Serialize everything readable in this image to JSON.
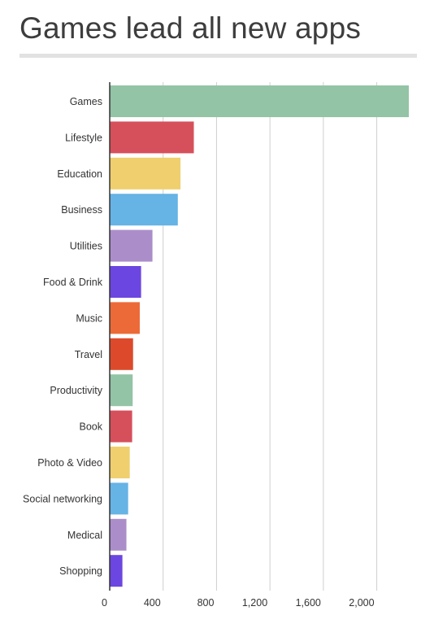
{
  "chart_data": {
    "type": "bar",
    "orientation": "horizontal",
    "title": "Games lead all new apps",
    "categories": [
      "Games",
      "Lifestyle",
      "Education",
      "Business",
      "Utilities",
      "Food & Drink",
      "Music",
      "Travel",
      "Productivity",
      "Book",
      "Photo & Video",
      "Social networking",
      "Medical",
      "Shopping"
    ],
    "values": [
      2240,
      630,
      530,
      510,
      320,
      235,
      225,
      175,
      172,
      168,
      150,
      138,
      125,
      95
    ],
    "xlim": [
      0,
      2240
    ],
    "xticks": [
      0,
      400,
      800,
      1200,
      1600,
      2000
    ],
    "xtick_labels": [
      "0",
      "400",
      "800",
      "1,200",
      "1,600",
      "2,000"
    ],
    "xlabel": "",
    "ylabel": "",
    "grid": true,
    "legend": "none",
    "colors": [
      "#93c4a5",
      "#d6505b",
      "#efcf6e",
      "#66b3e5",
      "#ab8ec9",
      "#6c46e0",
      "#ec6a38",
      "#dd4a2b",
      "#93c4a5",
      "#d6505b",
      "#efcf6e",
      "#66b3e5",
      "#ab8ec9",
      "#6c46e0"
    ],
    "axis_color": "#333333",
    "grid_color": "#cfcfcf"
  }
}
